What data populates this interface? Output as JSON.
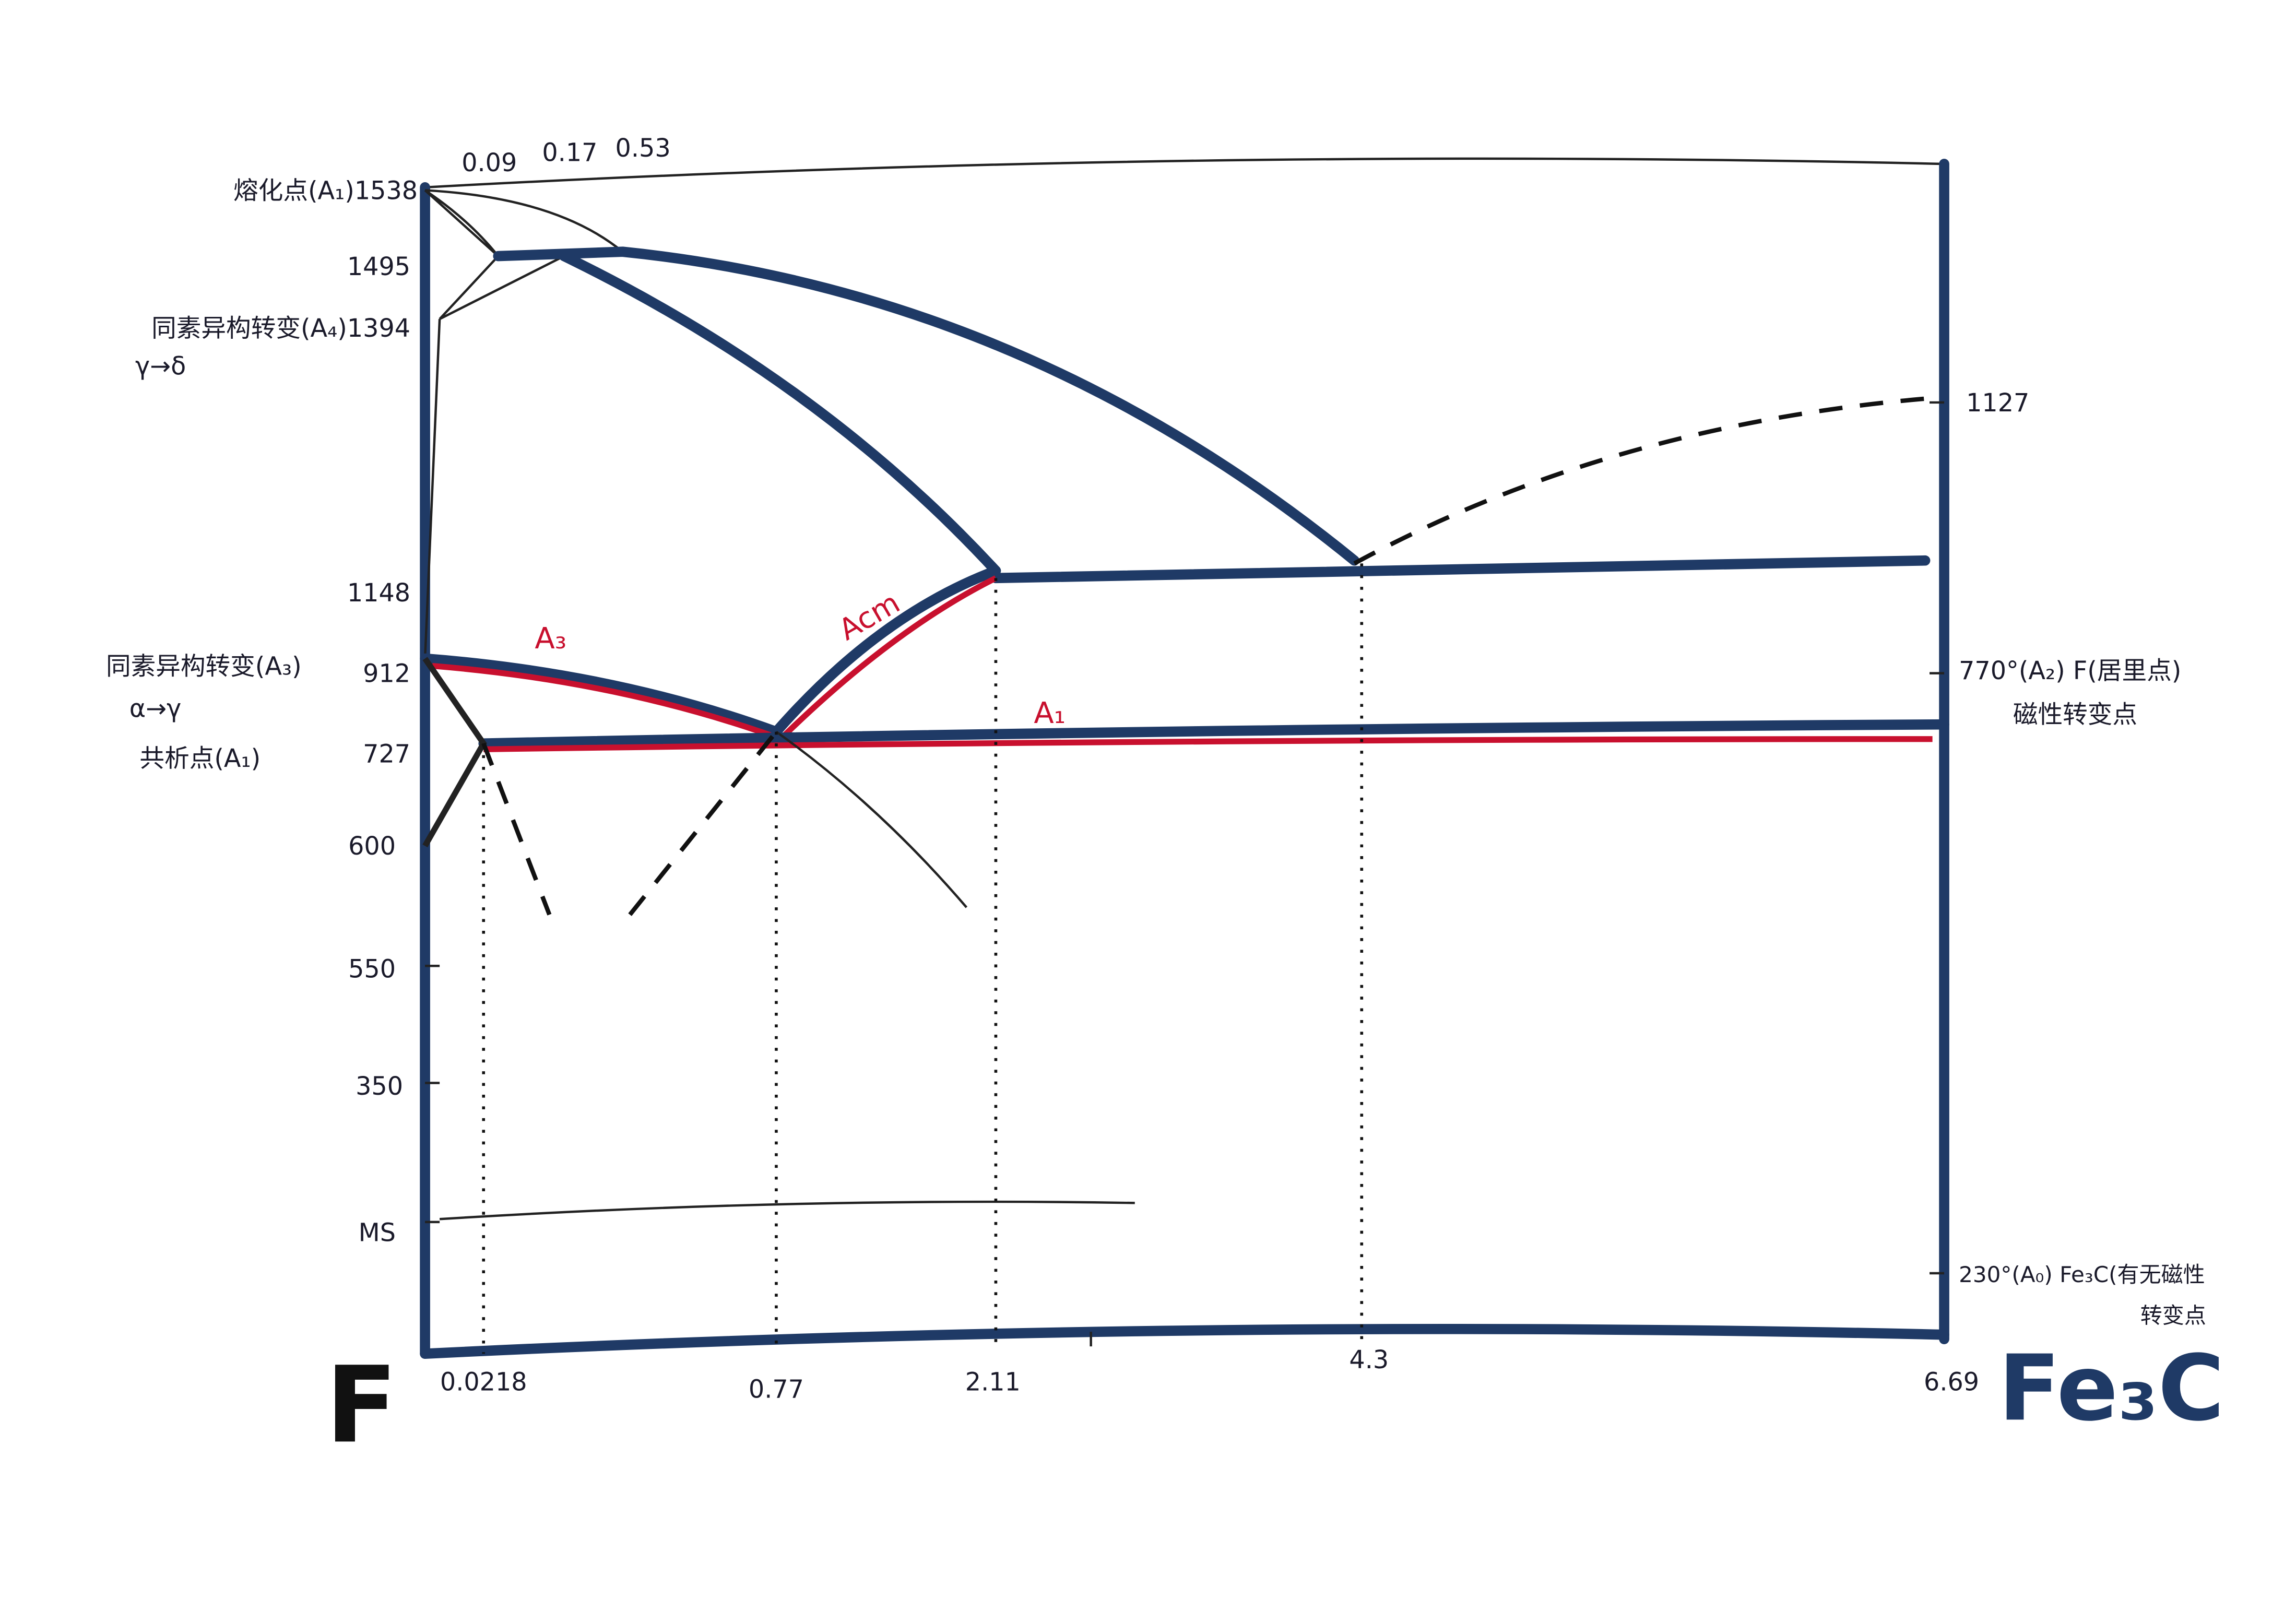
{
  "top_labels": [
    "0.09",
    "0.17",
    "0.53"
  ],
  "left_labels": [
    "熔化点(A₁)1538",
    "1495",
    "同素异构转变(A₄)1394",
    "γ→δ",
    "1148",
    "同素异构转变(A₃)",
    "912",
    "α→γ",
    "共析点(A₁)",
    "727",
    "600",
    "550",
    "350",
    "MS"
  ],
  "right_labels": [
    "1127",
    "770°(A₂) F(居里点)",
    "磁性转变点",
    "230°(A₀) Fe₃C(有无磁性",
    "转变点"
  ],
  "bottom_labels": [
    "0.0218",
    "0.77",
    "2.11",
    "4.3",
    "6.69"
  ],
  "axis_names": [
    "F",
    "Fe₃C"
  ],
  "curve_labels": [
    "A₃",
    "Acm",
    "A₁"
  ]
}
